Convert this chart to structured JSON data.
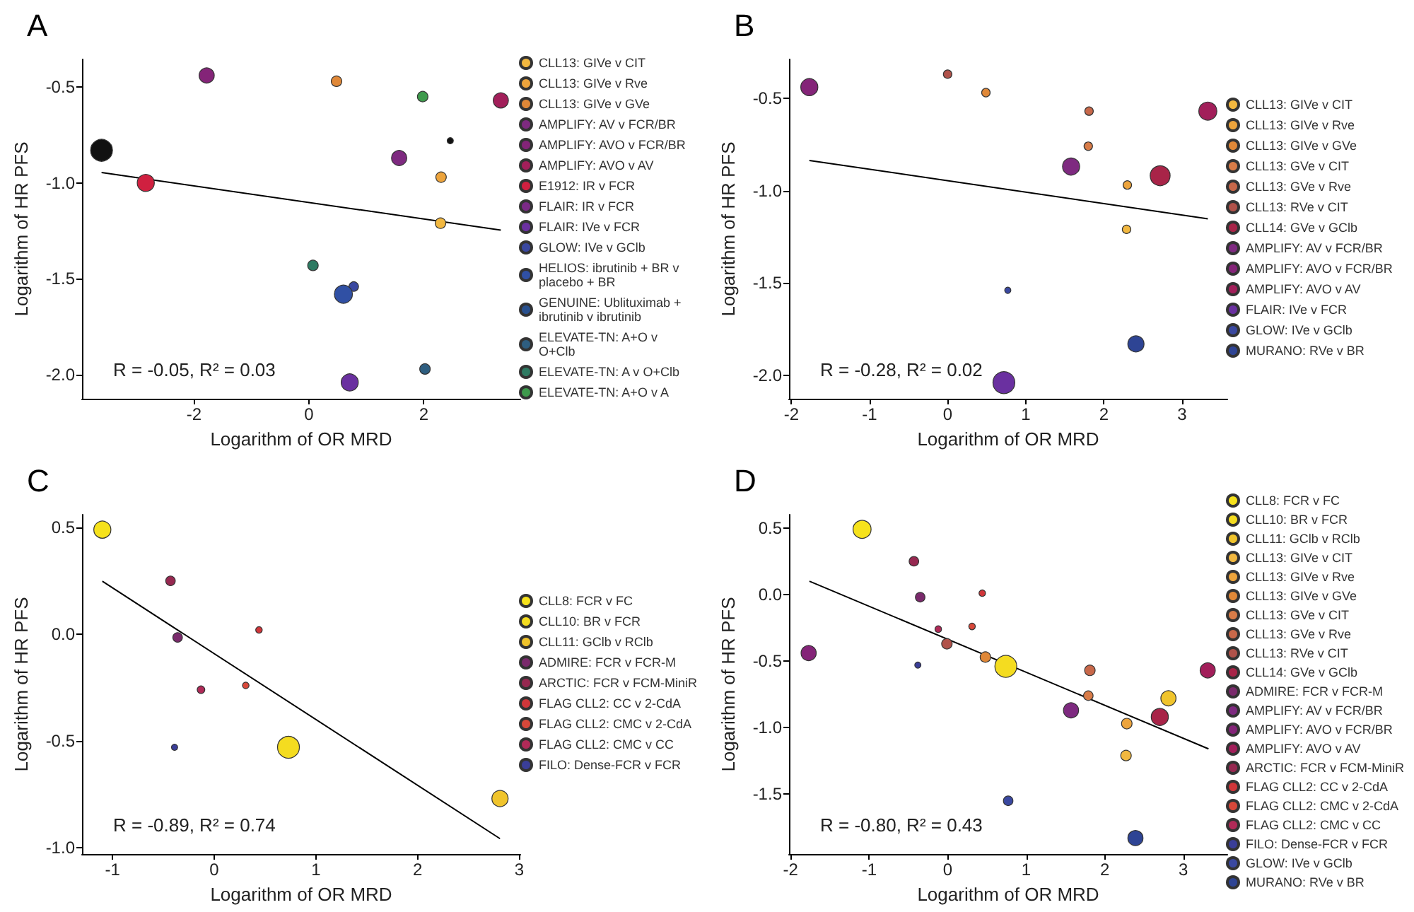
{
  "chart_data": [
    {
      "type": "bubble",
      "title": "A",
      "xlabel": "Logarithm of OR MRD",
      "ylabel": "Logarithm of HR PFS",
      "annotations": [
        "R = -0.05, R² = 0.03"
      ],
      "legend": "right",
      "marker": "circle",
      "xlim": [
        -3.95,
        3.68
      ],
      "xticks": [
        -2,
        0,
        2
      ],
      "ylim": [
        -2.125,
        -0.356
      ],
      "yticks": [
        {
          "value": -2,
          "label": "-2.0"
        },
        {
          "value": -1.5,
          "label": "-1.5"
        },
        {
          "value": -1,
          "label": "-1.0"
        },
        {
          "value": -0.5,
          "label": "-0.5"
        }
      ],
      "series": [
        {
          "name": "CLL13: GIVe v CIT",
          "color": "#f2b840",
          "x": [
            2.29
          ],
          "values": [
            -1.21
          ],
          "sizes": [
            0.23
          ]
        },
        {
          "name": "CLL13: GIVe v Rve",
          "color": "#eda43c",
          "x": [
            2.3
          ],
          "values": [
            -0.97
          ],
          "sizes": [
            0.23
          ]
        },
        {
          "name": "CLL13: GIVe v GVe",
          "color": "#e08838",
          "x": [
            0.48
          ],
          "values": [
            -0.47
          ],
          "sizes": [
            0.23
          ]
        },
        {
          "name": "AMPLIFY: AV v FCR/BR",
          "color": "#7e2a80",
          "x": [
            1.57
          ],
          "values": [
            -0.87
          ],
          "sizes": [
            0.48
          ]
        },
        {
          "name": "AMPLIFY: AVO v FCR/BR",
          "color": "#842478",
          "x": [
            -1.78
          ],
          "values": [
            -0.44
          ],
          "sizes": [
            0.48
          ]
        },
        {
          "name": "AMPLIFY: AVO v AV",
          "color": "#a21f5a",
          "x": [
            3.34
          ],
          "values": [
            -0.57
          ],
          "sizes": [
            0.48
          ]
        },
        {
          "name": "E1912: IR v FCR",
          "color": "#d02040",
          "x": [
            -2.84
          ],
          "values": [
            -1.0
          ],
          "sizes": [
            0.61
          ]
        },
        {
          "name": "FLAIR: IR v FCR",
          "color": "#7a2a86"
        },
        {
          "name": "FLAIR: IVe v FCR",
          "color": "#6a30a0",
          "x": [
            0.71
          ],
          "values": [
            -2.04
          ],
          "sizes": [
            0.61
          ]
        },
        {
          "name": "GLOW: IVe v GClb",
          "color": "#3a48a0",
          "x": [
            0.78
          ],
          "values": [
            -1.54
          ],
          "sizes": [
            0.19
          ]
        },
        {
          "name": "HELIOS: ibrutinib + BR v placebo + BR",
          "color": "#3050a4",
          "x": [
            0.6
          ],
          "values": [
            -1.58
          ],
          "sizes": [
            0.68
          ]
        },
        {
          "name": "GENUINE: Ublituximab + ibrutinib v ibrutinib",
          "color": "#28508e"
        },
        {
          "name": "ELEVATE-TN: A+O v O+Clb",
          "color": "#2e5e80",
          "x": [
            2.02
          ],
          "values": [
            -1.97
          ],
          "sizes": [
            0.23
          ]
        },
        {
          "name": "ELEVATE-TN: A v O+Clb",
          "color": "#2e7a62",
          "x": [
            0.07
          ],
          "values": [
            -1.43
          ],
          "sizes": [
            0.23
          ]
        },
        {
          "name": "ELEVATE-TN: A+O v A",
          "color": "#3e9a4c",
          "x": [
            1.98
          ],
          "values": [
            -0.55
          ],
          "sizes": [
            0.23
          ]
        },
        {
          "color": "#111111",
          "x": [
            -3.61,
            2.46
          ],
          "values": [
            -0.83,
            -0.78
          ],
          "sizes": [
            1,
            0.08
          ]
        },
        {
          "type": "line",
          "marker": "none",
          "color": "#000000",
          "x": [
            -3.61,
            3.34
          ],
          "values": [
            -0.946,
            -1.246
          ]
        }
      ]
    },
    {
      "type": "bubble",
      "title": "B",
      "xlabel": "Logarithm of OR MRD",
      "ylabel": "Logarithm of HR PFS",
      "annotations": [
        "R = -0.28, R² = 0.02"
      ],
      "legend": "right",
      "marker": "circle",
      "xlim": [
        -2.03,
        3.58
      ],
      "xticks": [
        -2,
        -1,
        0,
        1,
        2,
        3
      ],
      "ylim": [
        -2.127,
        -0.29
      ],
      "yticks": [
        {
          "value": -2,
          "label": "-2.0"
        },
        {
          "value": -1.5,
          "label": "-1.5"
        },
        {
          "value": -1,
          "label": "-1.0"
        },
        {
          "value": -0.5,
          "label": "-0.5"
        }
      ],
      "series": [
        {
          "name": "CLL13: GIVe v CIT",
          "color": "#f2b840",
          "x": [
            2.29
          ],
          "values": [
            -1.21
          ],
          "sizes": [
            0.15
          ]
        },
        {
          "name": "CLL13: GIVe v Rve",
          "color": "#eda43c",
          "x": [
            2.3
          ],
          "values": [
            -0.97
          ],
          "sizes": [
            0.15
          ]
        },
        {
          "name": "CLL13: GIVe v GVe",
          "color": "#e08838",
          "x": [
            0.49
          ],
          "values": [
            -0.47
          ],
          "sizes": [
            0.15
          ]
        },
        {
          "name": "CLL13: GVe v CIT",
          "color": "#d97c48",
          "x": [
            1.8
          ],
          "values": [
            -0.76
          ],
          "sizes": [
            0.15
          ]
        },
        {
          "name": "CLL13: GVe v Rve",
          "color": "#c8684a",
          "x": [
            1.81
          ],
          "values": [
            -0.57
          ],
          "sizes": [
            0.15
          ]
        },
        {
          "name": "CLL13: RVe v CIT",
          "color": "#b0524a",
          "x": [
            0.0
          ],
          "values": [
            -0.37
          ],
          "sizes": [
            0.15
          ]
        },
        {
          "name": "CLL14: GVe v GClb",
          "color": "#a82448",
          "x": [
            2.72
          ],
          "values": [
            -0.92
          ],
          "sizes": [
            0.83
          ]
        },
        {
          "name": "AMPLIFY: AV v FCR/BR",
          "color": "#7e2a80",
          "x": [
            1.58
          ],
          "values": [
            -0.87
          ],
          "sizes": [
            0.61
          ]
        },
        {
          "name": "AMPLIFY: AVO v FCR/BR",
          "color": "#842478",
          "x": [
            -1.77
          ],
          "values": [
            -0.44
          ],
          "sizes": [
            0.61
          ]
        },
        {
          "name": "AMPLIFY: AVO v AV",
          "color": "#a21f5a",
          "x": [
            3.33
          ],
          "values": [
            -0.57
          ],
          "sizes": [
            0.68
          ]
        },
        {
          "name": "FLAIR: IVe v FCR",
          "color": "#6a30a0",
          "x": [
            0.72
          ],
          "values": [
            -2.04
          ],
          "sizes": [
            1
          ]
        },
        {
          "name": "GLOW: IVe v GClb",
          "color": "#3a48a0",
          "x": [
            0.77
          ],
          "values": [
            -1.54
          ],
          "sizes": [
            0.08
          ]
        },
        {
          "name": "MURANO: RVe v BR",
          "color": "#2e4494",
          "x": [
            2.41
          ],
          "values": [
            -1.83
          ],
          "sizes": [
            0.55
          ]
        },
        {
          "type": "line",
          "marker": "none",
          "color": "#000000",
          "x": [
            -1.77,
            3.33
          ],
          "values": [
            -0.837,
            -1.153
          ]
        }
      ]
    },
    {
      "type": "bubble",
      "title": "C",
      "xlabel": "Logarithm of OR MRD",
      "ylabel": "Logarithm of HR PFS",
      "annotations": [
        "R = -0.89, R² = 0.74"
      ],
      "legend": "right",
      "marker": "circle",
      "xlim": [
        -1.3,
        3.01
      ],
      "xticks": [
        -1,
        0,
        1,
        2,
        3
      ],
      "ylim": [
        -1.03,
        0.56
      ],
      "yticks": [
        {
          "value": -1,
          "label": "-1.0"
        },
        {
          "value": -0.5,
          "label": "-0.5"
        },
        {
          "value": 0,
          "label": "0.0"
        },
        {
          "value": 0.5,
          "label": "0.5"
        }
      ],
      "series": [
        {
          "name": "CLL8: FCR v FC",
          "color": "#f6e21c",
          "x": [
            -1.1
          ],
          "values": [
            0.49
          ],
          "sizes": [
            0.61
          ]
        },
        {
          "name": "CLL10: BR v FCR",
          "color": "#f4dc20",
          "x": [
            0.73
          ],
          "values": [
            -0.53
          ],
          "sizes": [
            1
          ]
        },
        {
          "name": "CLL11: GClb v RClb",
          "color": "#f0c42c",
          "x": [
            2.81
          ],
          "values": [
            -0.77
          ],
          "sizes": [
            0.55
          ]
        },
        {
          "name": "ADMIRE: FCR v FCR-M",
          "color": "#7a2a6c",
          "x": [
            -0.36
          ],
          "values": [
            -0.015
          ],
          "sizes": [
            0.19
          ]
        },
        {
          "name": "ARCTIC: FCR v FCM-MiniR",
          "color": "#962850",
          "x": [
            -0.43
          ],
          "values": [
            0.25
          ],
          "sizes": [
            0.19
          ]
        },
        {
          "name": "FLAG CLL2: CC v 2-CdA",
          "color": "#d0363a",
          "x": [
            0.44
          ],
          "values": [
            0.02
          ],
          "sizes": [
            0.09
          ]
        },
        {
          "name": "FLAG CLL2: CMC v 2-CdA",
          "color": "#d8483a",
          "x": [
            0.31
          ],
          "values": [
            -0.24
          ],
          "sizes": [
            0.09
          ]
        },
        {
          "name": "FLAG CLL2: CMC v CC",
          "color": "#b02a58",
          "x": [
            -0.13
          ],
          "values": [
            -0.26
          ],
          "sizes": [
            0.12
          ]
        },
        {
          "name": "FILO: Dense-FCR v FCR",
          "color": "#3a3e98",
          "x": [
            -0.39
          ],
          "values": [
            -0.53
          ],
          "sizes": [
            0.08
          ]
        },
        {
          "type": "line",
          "marker": "none",
          "color": "#000000",
          "x": [
            -1.1,
            2.81
          ],
          "values": [
            0.248,
            -0.958
          ]
        }
      ]
    },
    {
      "type": "bubble",
      "title": "D",
      "xlabel": "Logarithm of OR MRD",
      "ylabel": "Logarithm of HR PFS",
      "annotations": [
        "R = -0.80, R² = 0.43"
      ],
      "legend": "right",
      "marker": "circle",
      "xlim": [
        -2.02,
        3.56
      ],
      "xticks": [
        -2,
        -1,
        0,
        1,
        2,
        3
      ],
      "ylim": [
        -1.95,
        0.6
      ],
      "yticks": [
        {
          "value": -1.5,
          "label": "-1.5"
        },
        {
          "value": -1,
          "label": "-1.0"
        },
        {
          "value": -0.5,
          "label": "-0.5"
        },
        {
          "value": 0,
          "label": "0.0"
        },
        {
          "value": 0.5,
          "label": "0.5"
        }
      ],
      "series": [
        {
          "name": "CLL8: FCR v FC",
          "color": "#f6e21c",
          "x": [
            -1.09
          ],
          "values": [
            0.49
          ],
          "sizes": [
            0.68
          ]
        },
        {
          "name": "CLL10: BR v FCR",
          "color": "#f4dc20",
          "x": [
            0.74
          ],
          "values": [
            -0.54
          ],
          "sizes": [
            1
          ]
        },
        {
          "name": "CLL11: GClb v RClb",
          "color": "#f0c42c",
          "x": [
            2.81
          ],
          "values": [
            -0.78
          ],
          "sizes": [
            0.48
          ]
        },
        {
          "name": "CLL13: GIVe v CIT",
          "color": "#f2b840",
          "x": [
            2.27
          ],
          "values": [
            -1.21
          ],
          "sizes": [
            0.23
          ]
        },
        {
          "name": "CLL13: GIVe v Rve",
          "color": "#eda43c",
          "x": [
            2.28
          ],
          "values": [
            -0.97
          ],
          "sizes": [
            0.23
          ]
        },
        {
          "name": "CLL13: GIVe v GVe",
          "color": "#e08838",
          "x": [
            0.48
          ],
          "values": [
            -0.47
          ],
          "sizes": [
            0.23
          ]
        },
        {
          "name": "CLL13: GVe v CIT",
          "color": "#d97c48",
          "x": [
            1.79
          ],
          "values": [
            -0.76
          ],
          "sizes": [
            0.19
          ]
        },
        {
          "name": "CLL13: GVe v Rve",
          "color": "#c8684a",
          "x": [
            1.81
          ],
          "values": [
            -0.57
          ],
          "sizes": [
            0.23
          ]
        },
        {
          "name": "CLL13: RVe v CIT",
          "color": "#b0524a",
          "x": [
            -0.01
          ],
          "values": [
            -0.37
          ],
          "sizes": [
            0.23
          ]
        },
        {
          "name": "CLL14: GVe v GClb",
          "color": "#a82448",
          "x": [
            2.7
          ],
          "values": [
            -0.92
          ],
          "sizes": [
            0.61
          ]
        },
        {
          "name": "ADMIRE: FCR v FCR-M",
          "color": "#7a2a6c",
          "x": [
            -0.35
          ],
          "values": [
            -0.02
          ],
          "sizes": [
            0.19
          ]
        },
        {
          "name": "AMPLIFY: AV v FCR/BR",
          "color": "#7e2a80",
          "x": [
            1.57
          ],
          "values": [
            -0.87
          ],
          "sizes": [
            0.48
          ]
        },
        {
          "name": "AMPLIFY: AVO v FCR/BR",
          "color": "#842478",
          "x": [
            -1.77
          ],
          "values": [
            -0.44
          ],
          "sizes": [
            0.48
          ]
        },
        {
          "name": "AMPLIFY: AVO v AV",
          "color": "#a21f5a",
          "x": [
            3.31
          ],
          "values": [
            -0.57
          ],
          "sizes": [
            0.48
          ]
        },
        {
          "name": "ARCTIC: FCR v FCM-MiniR",
          "color": "#962850",
          "x": [
            -0.43
          ],
          "values": [
            0.25
          ],
          "sizes": [
            0.19
          ]
        },
        {
          "name": "FLAG CLL2: CC v 2-CdA",
          "color": "#d0363a",
          "x": [
            0.44
          ],
          "values": [
            0.01
          ],
          "sizes": [
            0.09
          ]
        },
        {
          "name": "FLAG CLL2: CMC v 2-CdA",
          "color": "#d8483a",
          "x": [
            0.31
          ],
          "values": [
            -0.24
          ],
          "sizes": [
            0.09
          ]
        },
        {
          "name": "FLAG CLL2: CMC v CC",
          "color": "#b02a58",
          "x": [
            -0.12
          ],
          "values": [
            -0.26
          ],
          "sizes": [
            0.09
          ]
        },
        {
          "name": "FILO: Dense-FCR v FCR",
          "color": "#3a3e98",
          "x": [
            -0.38
          ],
          "values": [
            -0.53
          ],
          "sizes": [
            0.08
          ]
        },
        {
          "name": "GLOW: IVe v GClb",
          "color": "#3a48a0",
          "x": [
            0.77
          ],
          "values": [
            -1.55
          ],
          "sizes": [
            0.19
          ]
        },
        {
          "name": "MURANO: RVe v BR",
          "color": "#2e4494",
          "x": [
            2.39
          ],
          "values": [
            -1.83
          ],
          "sizes": [
            0.48
          ]
        },
        {
          "type": "line",
          "marker": "none",
          "color": "#000000",
          "x": [
            -1.76,
            3.32
          ],
          "values": [
            0.1,
            -1.16
          ]
        }
      ]
    }
  ]
}
